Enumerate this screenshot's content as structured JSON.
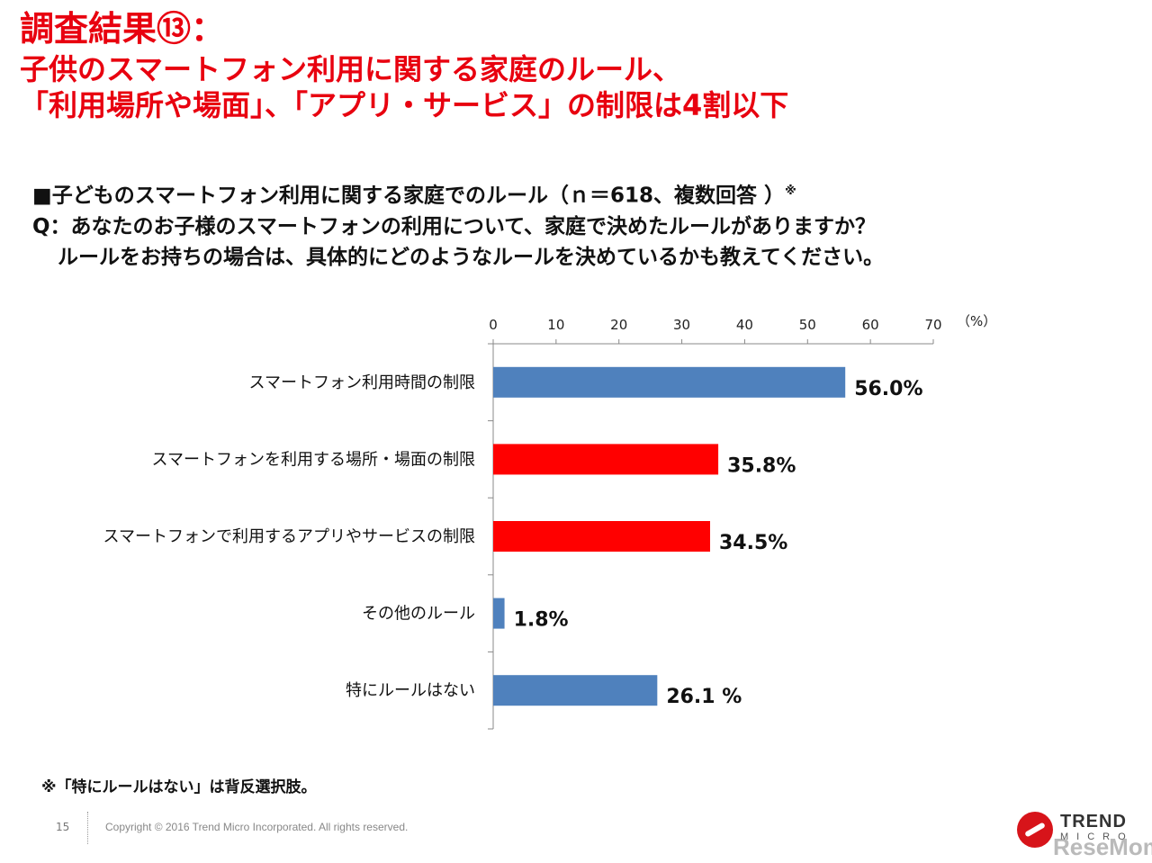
{
  "header": {
    "title": "調査結果⑬：",
    "subtitle_line1": "子供のスマートフォン利用に関する家庭のルール、",
    "subtitle_line2": "「利用場所や場面」、「アプリ・サービス」の制限は4割以下"
  },
  "question": {
    "heading": "■子どものスマートフォン利用に関する家庭でのルール（ｎ＝618、複数回答 ）",
    "heading_mark": "※",
    "line1": "Q：あなたのお子様のスマートフォンの利用について、家庭で決めたルールがありますか？",
    "line2": "ルールをお持ちの場合は、具体的にどのようなルールを決めているかも教えてください。"
  },
  "chart_data": {
    "type": "bar",
    "orientation": "horizontal",
    "categories": [
      "スマートフォン利用時間の制限",
      "スマートフォンを利用する場所・場面の制限",
      "スマートフォンで利用するアプリやサービスの制限",
      "その他のルール",
      "特にルールはない"
    ],
    "values": [
      56.0,
      35.8,
      34.5,
      1.8,
      26.1
    ],
    "value_labels": [
      "56.0%",
      "35.8%",
      "34.5%",
      "1.8%",
      "26.1 %"
    ],
    "bar_colors": [
      "#4f81bd",
      "#ff0000",
      "#ff0000",
      "#4f81bd",
      "#4f81bd"
    ],
    "xlim": [
      0,
      70
    ],
    "x_ticks": [
      0,
      10,
      20,
      30,
      40,
      50,
      60,
      70
    ],
    "x_tick_labels": [
      "0",
      "10",
      "20",
      "30",
      "40",
      "50",
      "60",
      "70"
    ],
    "unit_label": "（%）",
    "axis_position": "top",
    "grid": false
  },
  "footnote": "※「特にルールはない」は背反選択肢。",
  "footer": {
    "page_number": "15",
    "copyright": "Copyright © 2016 Trend Micro Incorporated. All rights reserved.",
    "brand_name": "TREND",
    "brand_sub": "MICRO",
    "watermark": "ReseMom"
  },
  "colors": {
    "title_red": "#e8000f",
    "bar_blue": "#4f81bd",
    "bar_red": "#ff0000"
  }
}
